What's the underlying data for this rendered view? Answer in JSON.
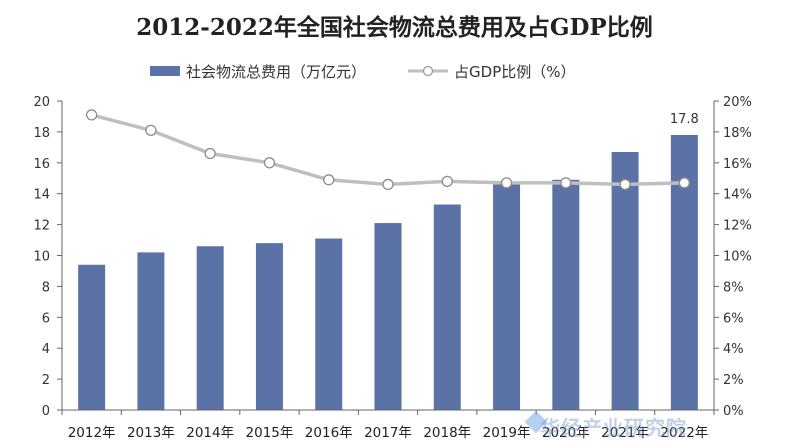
{
  "chart_data": {
    "type": "bar+line",
    "title": "2012-2022年全国社会物流总费用及占GDP比例",
    "categories": [
      "2012年",
      "2013年",
      "2014年",
      "2015年",
      "2016年",
      "2017年",
      "2018年",
      "2019年",
      "2020年",
      "2021年",
      "2022年"
    ],
    "series": [
      {
        "name": "社会物流总费用（万亿元）",
        "type": "bar",
        "axis": "left",
        "values": [
          9.4,
          10.2,
          10.6,
          10.8,
          11.1,
          12.1,
          13.3,
          14.6,
          14.9,
          16.7,
          17.8
        ],
        "color": "#5b72a6"
      },
      {
        "name": "占GDP比例（%）",
        "type": "line",
        "axis": "right",
        "values": [
          19.1,
          18.1,
          16.6,
          16.0,
          14.9,
          14.6,
          14.8,
          14.7,
          14.7,
          14.6,
          14.7
        ],
        "color": "#bfbfbf"
      }
    ],
    "y_left": {
      "min": 0,
      "max": 20,
      "step": 2,
      "ticks": [
        "0",
        "2",
        "4",
        "6",
        "8",
        "10",
        "12",
        "14",
        "16",
        "18",
        "20"
      ]
    },
    "y_right": {
      "min": 0,
      "max": 20,
      "step": 2,
      "ticks": [
        "0%",
        "2%",
        "4%",
        "6%",
        "8%",
        "10%",
        "12%",
        "14%",
        "16%",
        "18%",
        "20%"
      ]
    },
    "data_labels": [
      {
        "category": "2022年",
        "text": "17.8"
      }
    ],
    "legend_position": "top",
    "watermark": "华经产业研究院"
  }
}
